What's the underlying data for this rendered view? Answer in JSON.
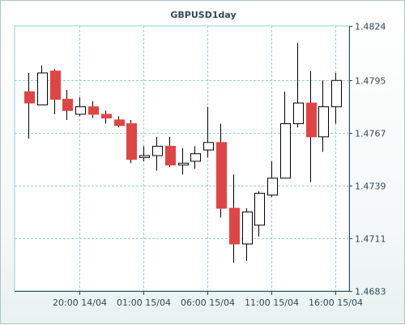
{
  "chart_data": {
    "type": "candlestick",
    "title": "GBPUSD1day",
    "y_ticks": [
      "1.4824",
      "1.4795",
      "1.4767",
      "1.4739",
      "1.4711",
      "1.4683"
    ],
    "ylim": [
      1.4683,
      1.4824
    ],
    "x_ticks": [
      "20:00 14/04",
      "01:00 15/04",
      "06:00 15/04",
      "11:00 15/04",
      "16:00 15/04"
    ],
    "grid": true,
    "colors": {
      "bearish": "#e04545",
      "bullish": "#ffffff",
      "wick": "#000000",
      "grid": "#8fcfcf",
      "axis": "#2e4a58",
      "plot_bg": "#ffffff"
    },
    "candles": [
      {
        "open": 1.4789,
        "high": 1.4799,
        "low": 1.4764,
        "close": 1.4783
      },
      {
        "open": 1.4782,
        "high": 1.4803,
        "low": 1.4782,
        "close": 1.4799
      },
      {
        "open": 1.48,
        "high": 1.4801,
        "low": 1.4777,
        "close": 1.4785
      },
      {
        "open": 1.4785,
        "high": 1.479,
        "low": 1.4774,
        "close": 1.4779
      },
      {
        "open": 1.4777,
        "high": 1.4786,
        "low": 1.4776,
        "close": 1.4781
      },
      {
        "open": 1.4781,
        "high": 1.4784,
        "low": 1.4775,
        "close": 1.4777
      },
      {
        "open": 1.4777,
        "high": 1.4779,
        "low": 1.4772,
        "close": 1.4775
      },
      {
        "open": 1.4774,
        "high": 1.4776,
        "low": 1.477,
        "close": 1.4771
      },
      {
        "open": 1.4772,
        "high": 1.4774,
        "low": 1.4751,
        "close": 1.4753
      },
      {
        "open": 1.4754,
        "high": 1.476,
        "low": 1.4752,
        "close": 1.4755
      },
      {
        "open": 1.4755,
        "high": 1.4765,
        "low": 1.4747,
        "close": 1.476
      },
      {
        "open": 1.476,
        "high": 1.4765,
        "low": 1.4749,
        "close": 1.475
      },
      {
        "open": 1.475,
        "high": 1.4759,
        "low": 1.4745,
        "close": 1.4751
      },
      {
        "open": 1.4752,
        "high": 1.476,
        "low": 1.4748,
        "close": 1.4756
      },
      {
        "open": 1.4758,
        "high": 1.4781,
        "low": 1.4754,
        "close": 1.4762
      },
      {
        "open": 1.4762,
        "high": 1.4772,
        "low": 1.4722,
        "close": 1.4727
      },
      {
        "open": 1.4727,
        "high": 1.4745,
        "low": 1.4698,
        "close": 1.4708
      },
      {
        "open": 1.4708,
        "high": 1.4727,
        "low": 1.4699,
        "close": 1.4725
      },
      {
        "open": 1.4718,
        "high": 1.4736,
        "low": 1.4712,
        "close": 1.4735
      },
      {
        "open": 1.4734,
        "high": 1.4752,
        "low": 1.4733,
        "close": 1.4743
      },
      {
        "open": 1.4743,
        "high": 1.4789,
        "low": 1.4743,
        "close": 1.4772
      },
      {
        "open": 1.4772,
        "high": 1.4815,
        "low": 1.477,
        "close": 1.4783
      },
      {
        "open": 1.4783,
        "high": 1.48,
        "low": 1.4741,
        "close": 1.4765
      },
      {
        "open": 1.4765,
        "high": 1.4795,
        "low": 1.4757,
        "close": 1.4781
      },
      {
        "open": 1.4781,
        "high": 1.4799,
        "low": 1.4772,
        "close": 1.4795
      }
    ]
  }
}
